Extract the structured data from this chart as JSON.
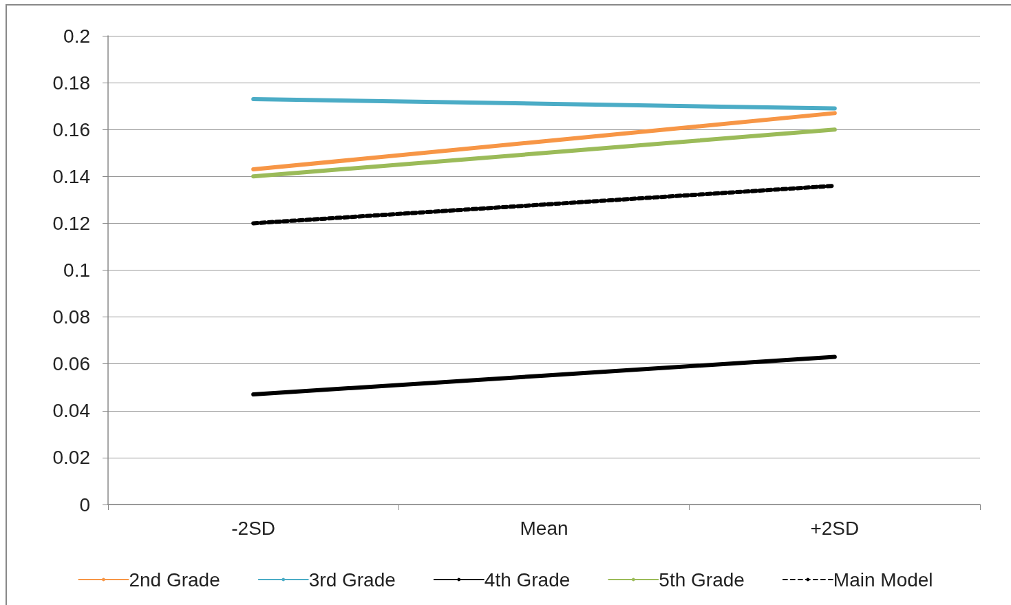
{
  "chart_data": {
    "type": "line",
    "categories": [
      "-2SD",
      "Mean",
      "+2SD"
    ],
    "series": [
      {
        "name": "2nd Grade",
        "color": "#f79646",
        "values": [
          0.143,
          0.155,
          0.167
        ]
      },
      {
        "name": "3rd Grade",
        "color": "#4bacc6",
        "values": [
          0.173,
          0.171,
          0.169
        ]
      },
      {
        "name": "4th Grade",
        "color": "#000000",
        "values": [
          0.047,
          0.055,
          0.063
        ]
      },
      {
        "name": "5th Grade",
        "color": "#9bbb59",
        "values": [
          0.14,
          0.15,
          0.16
        ]
      },
      {
        "name": "Main Model",
        "color": "#000000",
        "values": [
          0.12,
          0.128,
          0.136
        ],
        "line_style": "dashed"
      }
    ],
    "ylim": [
      0,
      0.2
    ],
    "yticks": [
      0,
      0.02,
      0.04,
      0.06,
      0.08,
      0.1,
      0.12,
      0.14,
      0.16,
      0.18,
      0.2
    ],
    "grid": "y",
    "legend": "bottom",
    "marker": "none",
    "line_style": "solid"
  }
}
